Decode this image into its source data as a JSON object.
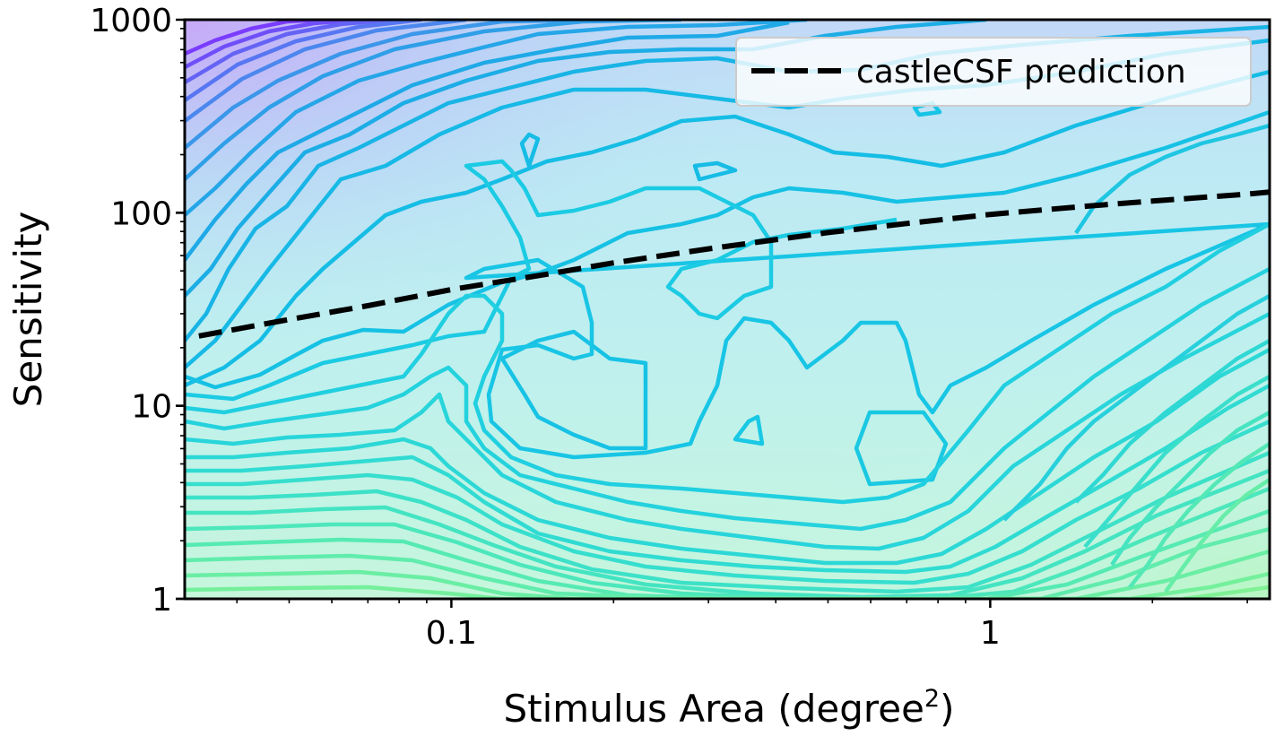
{
  "chart_data": {
    "type": "contour",
    "xlabel": "Stimulus Area (degree",
    "xlabel_superscript": "2",
    "xlabel_suffix": ")",
    "ylabel": "Sensitivity",
    "x_scale": "log",
    "y_scale": "log",
    "xlim": [
      0.032,
      3.3
    ],
    "ylim": [
      1,
      1000
    ],
    "x_ticks": [
      {
        "value": 0.1,
        "label": "0.1"
      },
      {
        "value": 1,
        "label": "1"
      }
    ],
    "y_ticks": [
      {
        "value": 1,
        "label": "1"
      },
      {
        "value": 10,
        "label": "10"
      },
      {
        "value": 100,
        "label": "100"
      },
      {
        "value": 1000,
        "label": "1000"
      }
    ],
    "legend": {
      "position": "top-right",
      "entries": [
        {
          "label": "castleCSF prediction",
          "style": "black-dashed"
        }
      ]
    },
    "grid": false,
    "colormap": "cool-to-cyan-to-green (purple high-sensitivity top-left, green low-sensitivity bottom)",
    "colors": {
      "purple": "#7a3cff",
      "blue": "#2a8fe8",
      "cyan": "#16c4e6",
      "turquoise": "#3ce6c8",
      "green": "#8ef0a0"
    },
    "series": [
      {
        "name": "castleCSF prediction",
        "x": [
          0.034,
          0.05,
          0.07,
          0.1,
          0.15,
          0.2,
          0.3,
          0.5,
          0.7,
          1.0,
          1.5,
          2.0,
          3.0,
          3.3
        ],
        "y": [
          23,
          28,
          33,
          40,
          48,
          55,
          65,
          79,
          88,
          98,
          108,
          115,
          125,
          128
        ]
      }
    ]
  }
}
